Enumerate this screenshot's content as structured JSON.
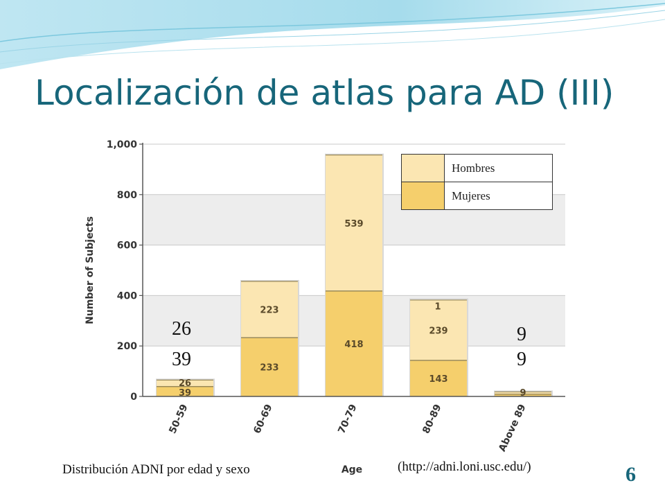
{
  "slide": {
    "title": "Localización de atlas para AD (III)",
    "caption": "Distribución ADNI por edad y sexo",
    "url": "(http://adni.loni.usc.edu/)",
    "page_number": "6",
    "accent_color": "#17667a"
  },
  "legend": {
    "men_label": "Hombres",
    "women_label": "Mujeres"
  },
  "annotations": {
    "left_top": "26",
    "left_bottom": "39",
    "right_top": "9",
    "right_bottom": "9"
  },
  "chart_data": {
    "type": "bar",
    "stacked": true,
    "categories": [
      "50-59",
      "60-69",
      "70-79",
      "80-89",
      "Above 89"
    ],
    "series": [
      {
        "name": "Mujeres",
        "values": [
          39,
          233,
          418,
          143,
          9
        ],
        "color": "#f5cf6c"
      },
      {
        "name": "Hombres",
        "values": [
          26,
          223,
          539,
          239,
          9
        ],
        "color": "#fbe6b2"
      }
    ],
    "extra_segment": {
      "category": "80-89",
      "value": 1,
      "label": "1"
    },
    "segment_labels": {
      "Mujeres": [
        "39",
        "233",
        "418",
        "143",
        "9"
      ],
      "Hombres": [
        "26",
        "223",
        "539",
        "239",
        ""
      ]
    },
    "xlabel": "Age",
    "ylabel": "Number of Subjects",
    "ylim": [
      0,
      1000
    ],
    "yticks": [
      0,
      200,
      400,
      600,
      800,
      1000
    ],
    "ytick_labels": [
      "0",
      "200",
      "400",
      "600",
      "800",
      "1,000"
    ],
    "grid": true,
    "legend_position": "top-right"
  }
}
